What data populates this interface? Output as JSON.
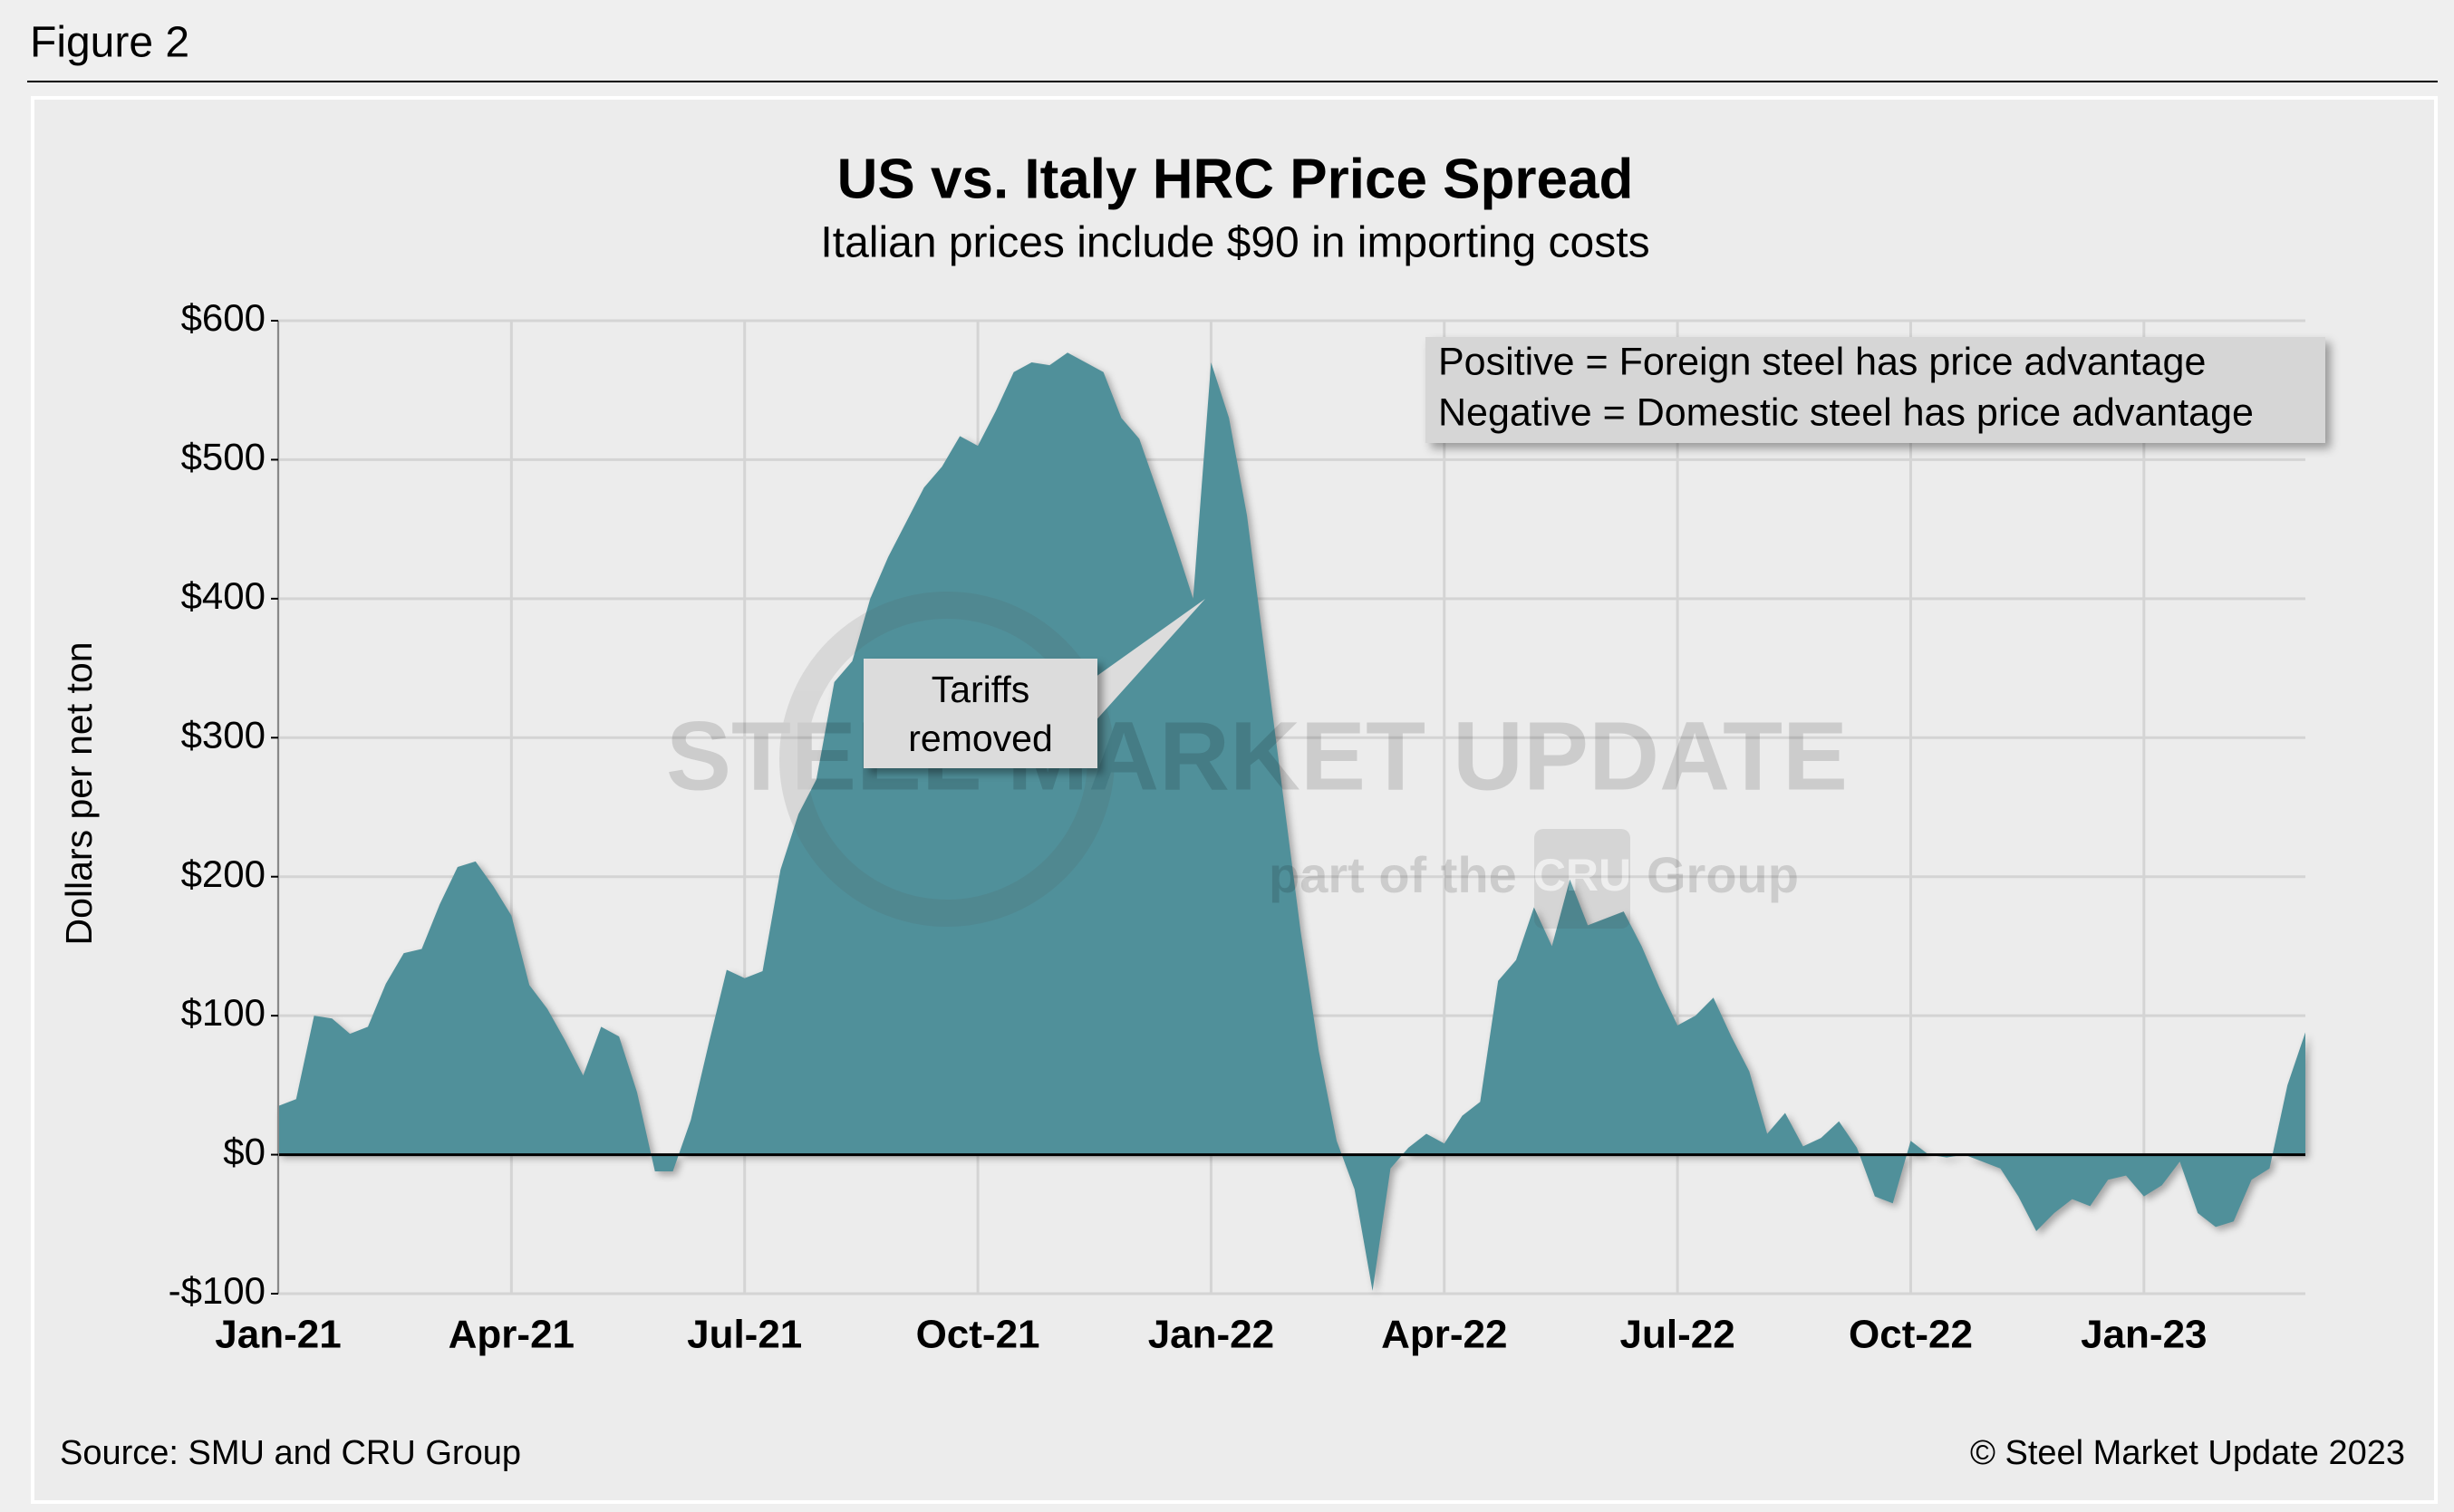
{
  "figure_label": "Figure 2",
  "chart_data": {
    "type": "area",
    "title": "US vs. Italy HRC Price Spread",
    "subtitle": "Italian prices include $90 in importing costs",
    "y_label": "Dollars per net ton",
    "color": "#50909a",
    "grid": true,
    "ylim": [
      -100,
      600
    ],
    "yticks": [
      {
        "value": -100,
        "label": "-$100"
      },
      {
        "value": 0,
        "label": "$0"
      },
      {
        "value": 100,
        "label": "$100"
      },
      {
        "value": 200,
        "label": "$200"
      },
      {
        "value": 300,
        "label": "$300"
      },
      {
        "value": 400,
        "label": "$400"
      },
      {
        "value": 500,
        "label": "$500"
      },
      {
        "value": 600,
        "label": "$600"
      }
    ],
    "categories": [
      "Jan-21",
      null,
      null,
      null,
      null,
      null,
      null,
      null,
      null,
      null,
      null,
      null,
      null,
      "Apr-21",
      null,
      null,
      null,
      null,
      null,
      null,
      null,
      null,
      null,
      null,
      null,
      null,
      "Jul-21",
      null,
      null,
      null,
      null,
      null,
      null,
      null,
      null,
      null,
      null,
      null,
      null,
      "Oct-21",
      null,
      null,
      null,
      null,
      null,
      null,
      null,
      null,
      null,
      null,
      null,
      null,
      "Jan-22",
      null,
      null,
      null,
      null,
      null,
      null,
      null,
      null,
      null,
      null,
      null,
      null,
      "Apr-22",
      null,
      null,
      null,
      null,
      null,
      null,
      null,
      null,
      null,
      null,
      null,
      null,
      "Jul-22",
      null,
      null,
      null,
      null,
      null,
      null,
      null,
      null,
      null,
      null,
      null,
      null,
      "Oct-22",
      null,
      null,
      null,
      null,
      null,
      null,
      null,
      null,
      null,
      null,
      null,
      null,
      "Jan-23",
      null,
      null,
      null,
      null,
      null,
      null,
      null,
      null,
      null
    ],
    "values": [
      35,
      40,
      100,
      98,
      87,
      92,
      123,
      145,
      148,
      180,
      207,
      211,
      193,
      172,
      122,
      105,
      82,
      57,
      92,
      85,
      45,
      -12,
      -12,
      25,
      80,
      133,
      127,
      132,
      205,
      245,
      270,
      340,
      355,
      400,
      430,
      455,
      480,
      495,
      517,
      510,
      535,
      563,
      570,
      568,
      577,
      570,
      563,
      530,
      515,
      478,
      440,
      400,
      570,
      530,
      460,
      360,
      260,
      160,
      75,
      10,
      -25,
      -98,
      -10,
      5,
      15,
      8,
      28,
      38,
      125,
      140,
      178,
      150,
      198,
      165,
      170,
      175,
      150,
      120,
      93,
      100,
      113,
      85,
      60,
      15,
      30,
      6,
      12,
      24,
      5,
      -30,
      -35,
      10,
      0,
      -2,
      0,
      -5,
      -10,
      -30,
      -55,
      -42,
      -32,
      -37,
      -18,
      -15,
      -30,
      -22,
      -5,
      -42,
      -52,
      -48,
      -18,
      -10,
      50,
      88
    ],
    "note": [
      "Positive = Foreign steel has price advantage",
      "Negative = Domestic steel has price advantage"
    ],
    "callout": "Tariffs removed",
    "watermark": {
      "brand": "STEEL MARKET UPDATE",
      "sub": "part of the",
      "logo": "CRU",
      "group": "Group"
    },
    "source": "Source: SMU and CRU Group",
    "copyright": "© Steel Market Update 2023"
  }
}
